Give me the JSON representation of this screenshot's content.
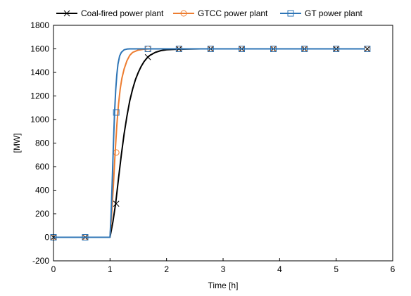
{
  "chart_data": {
    "type": "line",
    "title": "",
    "xlabel": "Time [h]",
    "ylabel": "[MW]",
    "xlim": [
      0,
      6
    ],
    "ylim": [
      -200,
      1800
    ],
    "x_ticks": [
      0,
      1,
      2,
      3,
      4,
      5,
      6
    ],
    "y_ticks": [
      -200,
      0,
      200,
      400,
      600,
      800,
      1000,
      1200,
      1400,
      1600,
      1800
    ],
    "grid": false,
    "legend_position": "top",
    "series": [
      {
        "name": "Coal-fired power plant",
        "color": "#000000",
        "marker": "x",
        "x": [
          0,
          0.5,
          1.0,
          1.05,
          1.1,
          1.15,
          1.2,
          1.25,
          1.3,
          1.35,
          1.4,
          1.45,
          1.5,
          1.55,
          1.6,
          1.65,
          1.7,
          1.8,
          1.9,
          2.0,
          2.2,
          2.4,
          2.6,
          2.8,
          3.0,
          3.5,
          4.0,
          4.5,
          5.0,
          5.5
        ],
        "y": [
          0,
          0,
          0,
          130,
          290,
          500,
          700,
          880,
          1030,
          1160,
          1260,
          1340,
          1400,
          1450,
          1490,
          1520,
          1543,
          1570,
          1585,
          1592,
          1597,
          1599,
          1600,
          1600,
          1600,
          1600,
          1600,
          1600,
          1600,
          1600
        ],
        "marker_x": [
          0,
          0.56,
          1.11,
          1.67,
          2.22,
          2.78,
          3.33,
          3.89,
          4.44,
          5.0,
          5.55
        ],
        "marker_y": [
          0,
          0,
          285,
          1530,
          1600,
          1600,
          1600,
          1600,
          1600,
          1600,
          1600
        ]
      },
      {
        "name": "GTCC power plant",
        "color": "#ed7d31",
        "marker": "circle",
        "x": [
          0,
          0.5,
          1.0,
          1.03,
          1.06,
          1.09,
          1.12,
          1.15,
          1.18,
          1.21,
          1.25,
          1.3,
          1.35,
          1.4,
          1.5,
          1.6,
          1.7,
          1.8,
          2.0,
          2.5,
          3.0,
          4.0,
          5.0,
          5.5
        ],
        "y": [
          0,
          0,
          0,
          200,
          450,
          720,
          950,
          1130,
          1260,
          1350,
          1430,
          1500,
          1545,
          1570,
          1590,
          1597,
          1600,
          1600,
          1600,
          1600,
          1600,
          1600,
          1600,
          1600
        ],
        "marker_x": [
          0,
          0.56,
          1.11,
          1.67,
          2.22,
          2.78,
          3.33,
          3.89,
          4.44,
          5.0,
          5.55
        ],
        "marker_y": [
          0,
          0,
          720,
          1600,
          1600,
          1600,
          1600,
          1600,
          1600,
          1600,
          1600
        ]
      },
      {
        "name": "GT power plant",
        "color": "#2e75b6",
        "marker": "square",
        "x": [
          0,
          0.5,
          1.0,
          1.02,
          1.04,
          1.06,
          1.08,
          1.1,
          1.12,
          1.14,
          1.17,
          1.2,
          1.25,
          1.3,
          1.35,
          1.4,
          1.5,
          1.6,
          2.0,
          2.5,
          3.0,
          4.0,
          5.0,
          5.5
        ],
        "y": [
          0,
          0,
          0,
          200,
          480,
          800,
          1060,
          1250,
          1380,
          1470,
          1540,
          1570,
          1592,
          1598,
          1600,
          1600,
          1600,
          1600,
          1600,
          1600,
          1600,
          1600,
          1600,
          1600
        ],
        "marker_x": [
          0,
          0.56,
          1.11,
          1.67,
          2.22,
          2.78,
          3.33,
          3.89,
          4.44,
          5.0,
          5.55
        ],
        "marker_y": [
          0,
          0,
          1060,
          1600,
          1600,
          1600,
          1600,
          1600,
          1600,
          1600,
          1600
        ]
      }
    ]
  }
}
